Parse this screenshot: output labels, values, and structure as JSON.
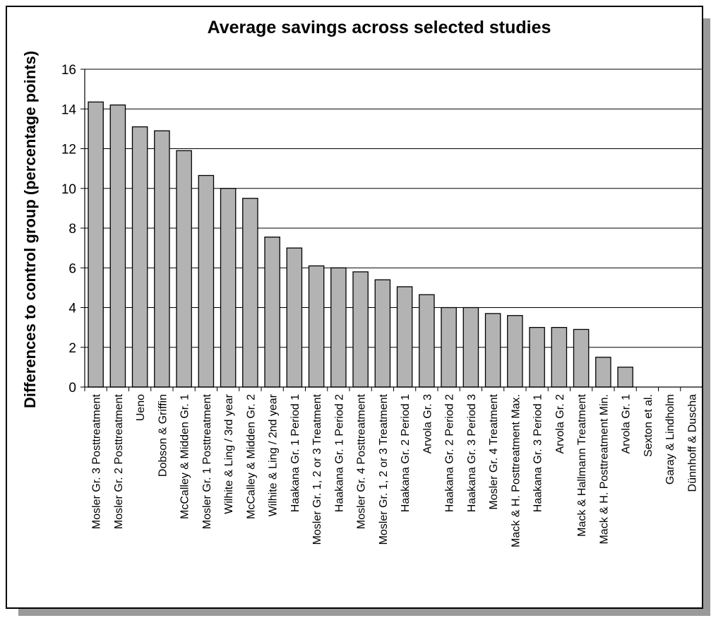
{
  "chart_data": {
    "type": "bar",
    "title": "Average savings across selected studies",
    "xlabel": "",
    "ylabel": "Differences to control group (percentage points)",
    "ylim": [
      0,
      16
    ],
    "yticks": [
      0,
      2,
      4,
      6,
      8,
      10,
      12,
      14,
      16
    ],
    "grid": true,
    "bar_color": "#b3b3b3",
    "categories": [
      "Mosler Gr. 3 Posttreatment",
      "Mosler Gr. 2 Posttreatment",
      "Ueno",
      "Dobson & Griffin",
      "McCalley & Midden Gr. 1",
      "Mosler Gr. 1 Posttreatment",
      "Wilhite & Ling / 3rd year",
      "McCalley & Midden Gr. 2",
      "Wilhite & Ling / 2nd year",
      "Haakana Gr. 1 Period 1",
      "Mosler Gr. 1, 2 or 3 Treatment",
      "Haakana Gr. 1 Period 2",
      "Mosler Gr. 4 Posttreatment",
      "Mosler Gr. 1, 2 or 3 Treatment",
      "Haakana Gr. 2 Period 1",
      "Arvola Gr. 3",
      "Haakana Gr. 2 Period 2",
      "Haakana Gr. 3 Period 3",
      "Mosler Gr. 4 Treatment",
      "Mack & H. Posttreatment Max.",
      "Haakana Gr. 3 Period 1",
      "Arvola Gr. 2",
      "Mack & Hallmann Treatment",
      "Mack & H. Posttreatment Min.",
      "Arvola Gr. 1",
      "Sexton et al.",
      "Garay & Lindholm",
      "Dünnhoff & Duscha"
    ],
    "values": [
      14.35,
      14.2,
      13.1,
      12.9,
      11.9,
      10.65,
      10.0,
      9.5,
      7.55,
      7.0,
      6.1,
      6.0,
      5.8,
      5.4,
      5.05,
      4.65,
      4.0,
      4.0,
      3.7,
      3.6,
      3.0,
      3.0,
      2.9,
      1.5,
      1.0,
      0,
      0,
      0
    ]
  }
}
